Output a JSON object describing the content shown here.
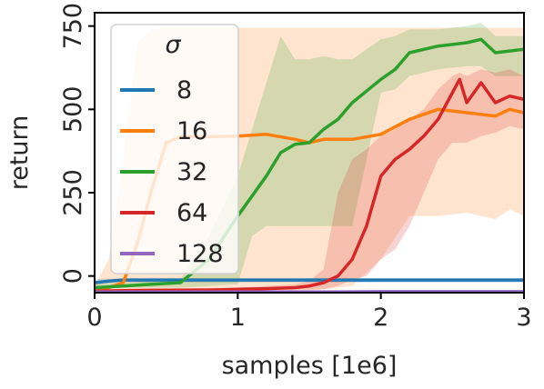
{
  "chart_data": {
    "type": "line",
    "title": "",
    "xlabel": "samples [1e6]",
    "ylabel": "return",
    "xlim": [
      0,
      3
    ],
    "ylim": [
      -50,
      790
    ],
    "x_ticks": [
      0,
      1,
      2,
      3
    ],
    "x_tick_labels": [
      "0",
      "1",
      "2",
      "3"
    ],
    "y_ticks": [
      0,
      250,
      500,
      750
    ],
    "y_tick_labels": [
      "0",
      "250",
      "500",
      "750"
    ],
    "grid": false,
    "legend": {
      "title": "σ",
      "placement": "upper-left",
      "entries": [
        "8",
        "16",
        "32",
        "64",
        "128"
      ]
    },
    "shaded_band": "min–max range across runs",
    "series": [
      {
        "name": "8",
        "color": "#1f77b4",
        "x": [
          0,
          0.1,
          0.2,
          0.5,
          1.0,
          1.5,
          2.0,
          2.5,
          3.0
        ],
        "values": [
          -20,
          -15,
          -12,
          -12,
          -12,
          -12,
          -12,
          -12,
          -12
        ],
        "lower": [
          -28,
          -22,
          -20,
          -20,
          -20,
          -20,
          -20,
          -20,
          -20
        ],
        "upper": [
          -10,
          -8,
          -6,
          -6,
          -6,
          -6,
          -6,
          -6,
          -6
        ]
      },
      {
        "name": "16",
        "color": "#ff7f0e",
        "x": [
          0,
          0.1,
          0.2,
          0.3,
          0.4,
          0.5,
          0.6,
          0.8,
          1.0,
          1.2,
          1.4,
          1.5,
          1.6,
          1.8,
          2.0,
          2.2,
          2.4,
          2.6,
          2.8,
          2.9,
          3.0
        ],
        "values": [
          -40,
          -35,
          -20,
          100,
          260,
          400,
          418,
          418,
          420,
          425,
          410,
          400,
          410,
          410,
          425,
          470,
          500,
          490,
          480,
          500,
          490
        ],
        "lower": [
          -40,
          -40,
          -40,
          -40,
          -40,
          -40,
          -40,
          -40,
          -40,
          -40,
          -40,
          -40,
          -40,
          -30,
          50,
          180,
          180,
          190,
          170,
          200,
          180
        ],
        "upper": [
          -30,
          50,
          350,
          700,
          740,
          745,
          745,
          745,
          745,
          745,
          745,
          745,
          745,
          745,
          745,
          745,
          745,
          745,
          745,
          745,
          745
        ]
      },
      {
        "name": "32",
        "color": "#2ca02c",
        "x": [
          0,
          0.2,
          0.4,
          0.6,
          0.8,
          1.0,
          1.1,
          1.2,
          1.3,
          1.4,
          1.5,
          1.6,
          1.7,
          1.8,
          2.0,
          2.1,
          2.2,
          2.4,
          2.6,
          2.7,
          2.8,
          3.0
        ],
        "values": [
          -35,
          -30,
          -25,
          -20,
          50,
          180,
          240,
          300,
          370,
          395,
          400,
          440,
          470,
          520,
          590,
          620,
          670,
          690,
          700,
          710,
          670,
          680
        ],
        "lower": [
          -35,
          -35,
          -35,
          -35,
          -30,
          -25,
          120,
          150,
          150,
          150,
          150,
          150,
          150,
          150,
          550,
          560,
          600,
          620,
          630,
          630,
          600,
          600
        ],
        "upper": [
          -25,
          -20,
          -15,
          -10,
          120,
          300,
          440,
          580,
          720,
          650,
          650,
          660,
          650,
          650,
          710,
          720,
          740,
          740,
          750,
          760,
          720,
          720
        ]
      },
      {
        "name": "64",
        "color": "#d62728",
        "x": [
          0,
          0.4,
          0.8,
          1.0,
          1.2,
          1.4,
          1.5,
          1.6,
          1.7,
          1.8,
          1.9,
          2.0,
          2.1,
          2.2,
          2.3,
          2.4,
          2.5,
          2.55,
          2.6,
          2.7,
          2.8,
          2.9,
          3.0
        ],
        "values": [
          -45,
          -43,
          -42,
          -40,
          -38,
          -35,
          -30,
          -20,
          0,
          50,
          150,
          300,
          350,
          380,
          420,
          470,
          550,
          590,
          520,
          580,
          520,
          540,
          530
        ],
        "lower": [
          -48,
          -47,
          -47,
          -46,
          -45,
          -44,
          -44,
          -40,
          -30,
          -10,
          0,
          50,
          80,
          150,
          250,
          350,
          400,
          400,
          400,
          420,
          430,
          450,
          440
        ],
        "upper": [
          -40,
          -38,
          -36,
          -35,
          -30,
          -25,
          -15,
          20,
          250,
          350,
          380,
          420,
          440,
          470,
          500,
          560,
          600,
          610,
          600,
          620,
          610,
          620,
          600
        ]
      },
      {
        "name": "128",
        "color": "#9467bd",
        "x": [
          0,
          0.5,
          1.0,
          1.5,
          2.0,
          2.5,
          3.0
        ],
        "values": [
          -48,
          -48,
          -48,
          -48,
          -47,
          -47,
          -47
        ],
        "lower": [
          -50,
          -50,
          -50,
          -50,
          -50,
          -50,
          -50
        ],
        "upper": [
          -44,
          -44,
          -44,
          -44,
          -43,
          -43,
          -43
        ]
      }
    ]
  }
}
